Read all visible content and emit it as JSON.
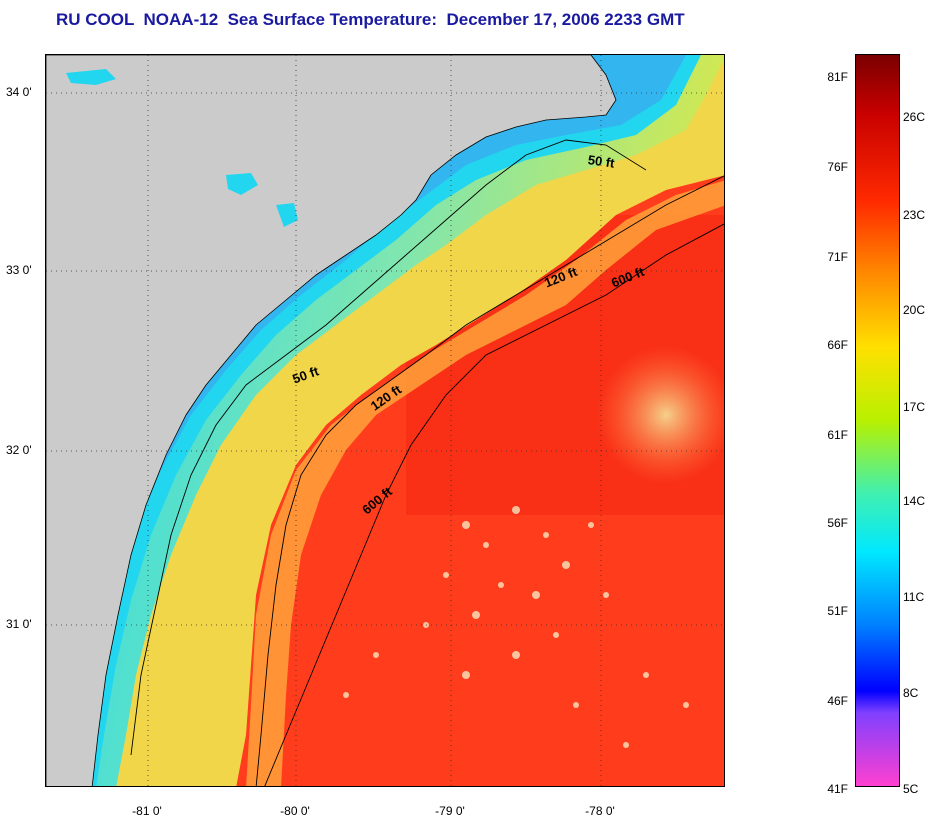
{
  "title": "RU COOL  NOAA-12  Sea Surface Temperature:  December 17, 2006 2233 GMT",
  "colors": {
    "title": "#1a1aa0",
    "land": "#cbcbcb",
    "water_cold": "#2de0f0",
    "water_warm": "#ff3a1a"
  },
  "map": {
    "lat_labels": [
      "34 0'",
      "33 0'",
      "32 0'",
      "31 0'"
    ],
    "lon_labels": [
      "-81 0'",
      "-80 0'",
      "-79 0'",
      "-78 0'"
    ],
    "depth_contour_labels": [
      "50 ft",
      "120 ft",
      "600 ft",
      "50 ft",
      "120 ft",
      "600 ft"
    ]
  },
  "colorbar": {
    "fahrenheit_labels": [
      "81F",
      "76F",
      "71F",
      "66F",
      "61F",
      "56F",
      "51F",
      "46F",
      "41F"
    ],
    "celsius_labels": [
      "26C",
      "23C",
      "20C",
      "17C",
      "14C",
      "11C",
      "8C",
      "5C"
    ]
  }
}
